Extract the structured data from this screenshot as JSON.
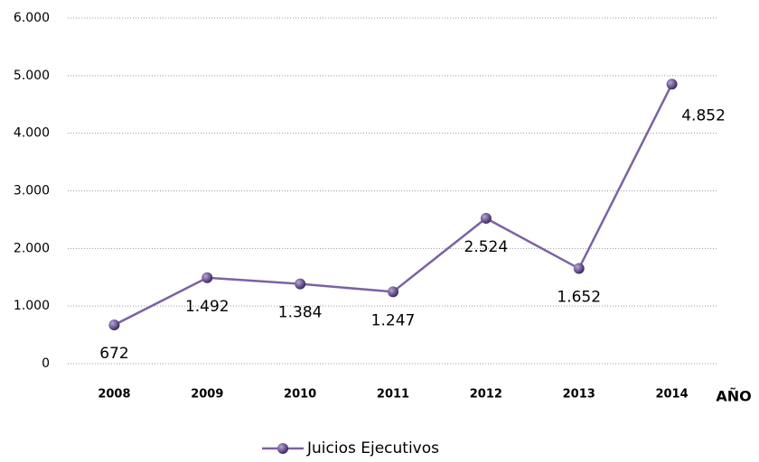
{
  "chart_data": {
    "type": "line",
    "categories": [
      "2008",
      "2009",
      "2010",
      "2011",
      "2012",
      "2013",
      "2014"
    ],
    "series": [
      {
        "name": "Juicios Ejecutivos",
        "color": "#7b62a3",
        "values": [
          672,
          1492,
          1384,
          1247,
          2524,
          1652,
          4852
        ],
        "value_labels": [
          "672",
          "1.492",
          "1.384",
          "1.247",
          "2.524",
          "1.652",
          "4.852"
        ]
      }
    ],
    "x_label": "AÑO",
    "ylim": [
      0,
      6000
    ],
    "yticks": [
      0,
      {
        "value": 1000,
        "label": "1.000"
      },
      {
        "value": 2000,
        "label": "2.000"
      },
      {
        "value": 3000,
        "label": "3.000"
      },
      {
        "value": 4000,
        "label": "4.000"
      },
      {
        "value": 5000,
        "label": "5.000"
      },
      {
        "value": 6000,
        "label": "6.000"
      }
    ],
    "grid": true,
    "legend": "bottom"
  }
}
